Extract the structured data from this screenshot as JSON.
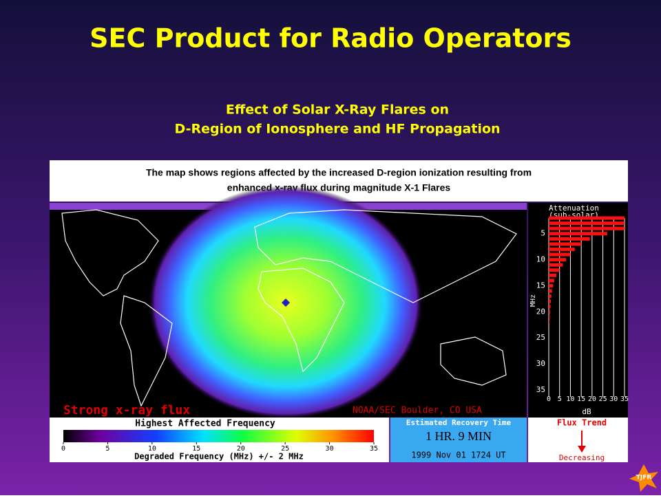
{
  "slide": {
    "title": "SEC Product for Radio Operators",
    "subtitle": [
      "Effect of Solar X-Ray Flares on",
      "D-Region of Ionosphere and HF Propagation"
    ],
    "caption": [
      "The map shows regions affected by the increased D-region ionization resulting from",
      "enhanced x-ray flux during magnitude X-1 Flares"
    ],
    "badge": "TJFR"
  },
  "map": {
    "flux_label": "Strong x-ray flux",
    "source": "NOAA/SEC Boulder, CO USA"
  },
  "attenuation": {
    "title": "Attenuation",
    "subtitle": "(sub-solar)",
    "y_label": "MHz",
    "x_label": "dB",
    "xlim": [
      0,
      35
    ],
    "xticks": [
      0,
      5,
      10,
      15,
      20,
      25,
      30,
      35
    ],
    "ylim": [
      2,
      37
    ],
    "yticks": [
      5,
      10,
      15,
      20,
      25,
      30,
      35
    ],
    "frequencies": [
      2,
      3,
      4,
      5,
      6,
      7,
      8,
      9,
      10,
      11,
      12,
      13,
      14,
      15,
      16,
      17,
      18,
      19,
      20,
      21,
      22
    ],
    "values": [
      35,
      35,
      35,
      27,
      19,
      15,
      12,
      10,
      8,
      6.5,
      5,
      3.5,
      2.5,
      2,
      1.5,
      1.2,
      1,
      0.8,
      0.6,
      0.5,
      0.4
    ]
  },
  "colorbar": {
    "title": "Highest Affected Frequency",
    "x_label": "Degraded Frequency (MHz) +/- 2 MHz",
    "lim": [
      0,
      35
    ],
    "ticks": [
      0,
      5,
      10,
      15,
      20,
      25,
      30,
      35
    ]
  },
  "recovery": {
    "title": "Estimated Recovery Time",
    "time": "1 HR. 9 MIN",
    "date": "1999 Nov 01 1724 UT"
  },
  "flux_trend": {
    "title": "Flux Trend",
    "state": "Decreasing"
  }
}
